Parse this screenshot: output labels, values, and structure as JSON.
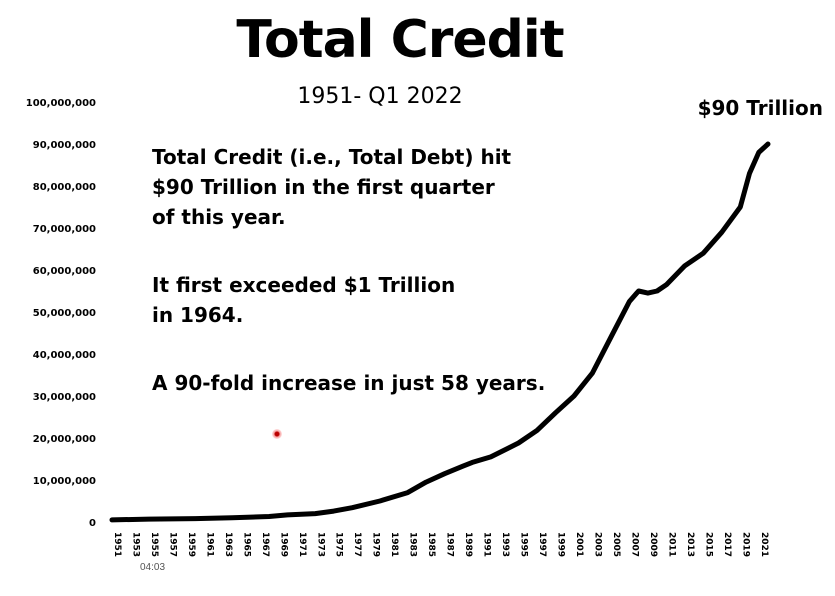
{
  "title": "Total Credit",
  "subtitle": "1951- Q1 2022",
  "end_annotation": "$90 Trillion",
  "notes": [
    "Total Credit (i.e., Total Debt) hit",
    "$90 Trillion in the first quarter",
    "of this year.",
    "It first exceeded $1 Trillion",
    "in 1964.",
    "A 90-fold increase in just 58 years."
  ],
  "timestamp": "04:03",
  "colors": {
    "line": "#000000",
    "cursor": "#cc0000"
  },
  "chart_data": {
    "type": "line",
    "title": "Total Credit",
    "subtitle": "1951- Q1 2022",
    "ylim": [
      0,
      100000000
    ],
    "xlim": [
      1951,
      2022
    ],
    "y_ticks": [
      "0",
      "10,000,000",
      "20,000,000",
      "30,000,000",
      "40,000,000",
      "50,000,000",
      "60,000,000",
      "70,000,000",
      "80,000,000",
      "90,000,000",
      "100,000,000"
    ],
    "x_ticks": [
      "1951",
      "1953",
      "1955",
      "1957",
      "1959",
      "1961",
      "1963",
      "1965",
      "1967",
      "1969",
      "1971",
      "1973",
      "1975",
      "1977",
      "1979",
      "1981",
      "1983",
      "1985",
      "1987",
      "1989",
      "1991",
      "1993",
      "1995",
      "1997",
      "1999",
      "2001",
      "2003",
      "2005",
      "2007",
      "2009",
      "2011",
      "2013",
      "2015",
      "2017",
      "2019",
      "2021"
    ],
    "grid": false,
    "legend": "none",
    "series": [
      {
        "x": [
          1951,
          1955,
          1960,
          1964,
          1968,
          1970,
          1973,
          1975,
          1977,
          1980,
          1983,
          1985,
          1987,
          1989,
          1990,
          1992,
          1995,
          1997,
          1999,
          2001,
          2003,
          2005,
          2007,
          2008,
          2009,
          2010,
          2011,
          2013,
          2015,
          2017,
          2019,
          2020,
          2021,
          2022
        ],
        "y": [
          500000,
          700000,
          800000,
          1000000,
          1300000,
          1700000,
          2000000,
          2600000,
          3400000,
          5000000,
          7000000,
          9500000,
          11500000,
          13300000,
          14200000,
          15500000,
          18800000,
          21800000,
          26000000,
          30000000,
          35500000,
          44000000,
          52500000,
          55000000,
          54500000,
          55000000,
          56500000,
          61000000,
          64000000,
          69000000,
          75000000,
          83000000,
          88000000,
          90000000
        ]
      }
    ]
  }
}
